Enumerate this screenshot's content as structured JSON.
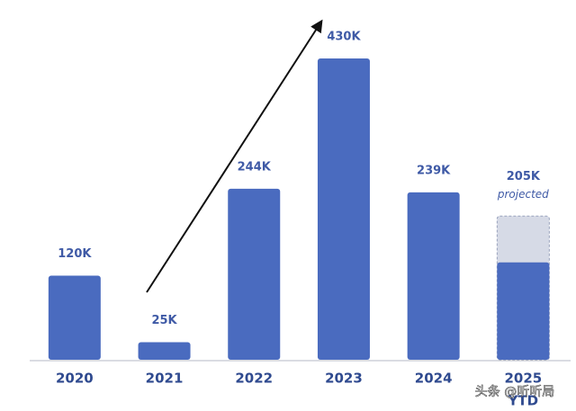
{
  "chart_data": {
    "type": "bar",
    "categories": [
      "2020",
      "2021",
      "2022",
      "2023",
      "2024",
      "2025"
    ],
    "category_note": {
      "index": 5,
      "label": "YTD"
    },
    "values": [
      120,
      25,
      244,
      430,
      239,
      139
    ],
    "value_labels": [
      "120K",
      "25K",
      "244K",
      "430K",
      "239K",
      null
    ],
    "color": "#4a6bbf",
    "projected": {
      "index": 5,
      "value": 205,
      "label": "205K",
      "note": "projected",
      "color": "#d6dae6"
    },
    "watermark": "头条 @听听局"
  }
}
